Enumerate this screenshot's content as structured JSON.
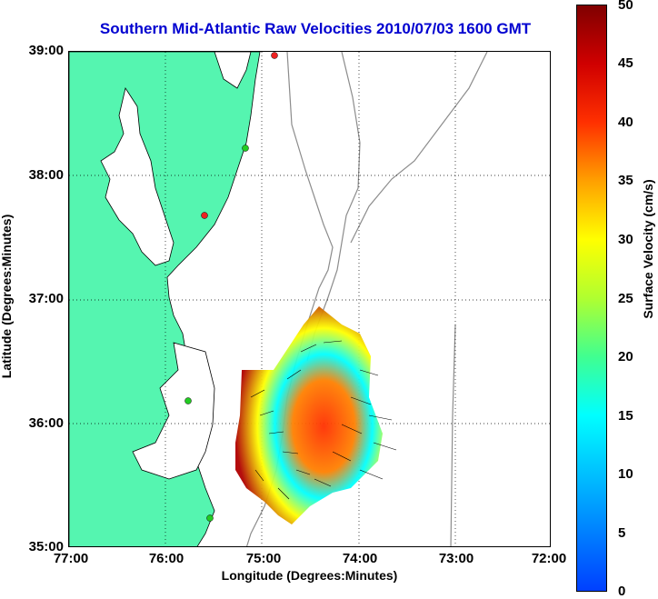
{
  "title": "Southern Mid-Atlantic Raw Velocities 2010/07/03 1600 GMT",
  "axes": {
    "xlabel": "Longitude (Degrees:Minutes)",
    "ylabel": "Latitude (Degrees:Minutes)",
    "x_ticks": [
      "77:00",
      "76:00",
      "75:00",
      "74:00",
      "73:00",
      "72:00"
    ],
    "y_ticks": [
      "39:00",
      "38:00",
      "37:00",
      "36:00",
      "35:00"
    ],
    "x_range": [
      -77,
      -72
    ],
    "y_range": [
      35,
      39
    ],
    "grid": "dotted"
  },
  "colorbar": {
    "label": "Surface Velocity (cm/s)",
    "ticks": [
      "50",
      "45",
      "40",
      "35",
      "30",
      "25",
      "20",
      "15",
      "10",
      "5",
      "0"
    ],
    "range": [
      0,
      50
    ]
  },
  "colors": {
    "land": "#55f5b0",
    "coast": "#000000",
    "isobath": "#8c8c8c",
    "title": "#0000d0",
    "station_green": "#22cc22",
    "station_red": "#ee2222"
  }
}
